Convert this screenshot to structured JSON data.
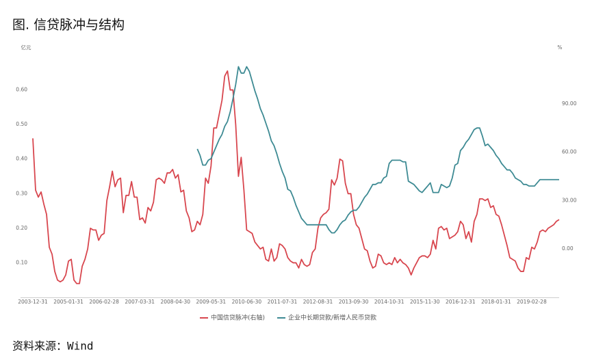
{
  "chart_data": {
    "type": "line",
    "title": "图. 信贷脉冲与结构",
    "source": "资料来源：Wind",
    "y_unit": "亿元",
    "y2_unit": "%",
    "categories": [
      "2003-12-31",
      null,
      null,
      null,
      null,
      null,
      null,
      null,
      null,
      null,
      null,
      null,
      null,
      "2005-01-31",
      null,
      null,
      null,
      null,
      null,
      null,
      null,
      null,
      null,
      null,
      null,
      null,
      "2006-02-28",
      null,
      null,
      null,
      null,
      null,
      null,
      null,
      null,
      null,
      null,
      null,
      null,
      "2007-03-31",
      null,
      null,
      null,
      null,
      null,
      null,
      null,
      null,
      null,
      null,
      null,
      null,
      "2008-04-30",
      null,
      null,
      null,
      null,
      null,
      null,
      null,
      null,
      null,
      null,
      null,
      null,
      "2009-05-31",
      null,
      null,
      null,
      null,
      null,
      null,
      null,
      null,
      null,
      null,
      null,
      null,
      "2010-06-30",
      null,
      null,
      null,
      null,
      null,
      null,
      null,
      null,
      null,
      null,
      null,
      null,
      "2011-07-31",
      null,
      null,
      null,
      null,
      null,
      null,
      null,
      null,
      null,
      null,
      null,
      null,
      "2012-08-31",
      null,
      null,
      null,
      null,
      null,
      null,
      null,
      null,
      null,
      null,
      null,
      null,
      "2013-09-30",
      null,
      null,
      null,
      null,
      null,
      null,
      null,
      null,
      null,
      null,
      null,
      null,
      "2014-10-31",
      null,
      null,
      null,
      null,
      null,
      null,
      null,
      null,
      null,
      null,
      null,
      null,
      "2015-11-30",
      null,
      null,
      null,
      null,
      null,
      null,
      null,
      null,
      null,
      null,
      null,
      null,
      "2016-12-31",
      null,
      null,
      null,
      null,
      null,
      null,
      null,
      null,
      null,
      null,
      null,
      null,
      "2018-01-31",
      null,
      null,
      null,
      null,
      null,
      null,
      null,
      null,
      null,
      null,
      null,
      null,
      "2019-02-28",
      null,
      null,
      null,
      null,
      null,
      null,
      null,
      null,
      null,
      null
    ],
    "series": [
      {
        "name": "中国信贷脉冲(右轴)",
        "color": "#d8464e",
        "axis": "y",
        "values": [
          0.46,
          0.31,
          0.29,
          0.305,
          0.27,
          0.24,
          0.145,
          0.125,
          0.075,
          0.05,
          0.045,
          0.05,
          0.065,
          0.105,
          0.11,
          0.05,
          0.04,
          0.04,
          0.09,
          0.11,
          0.14,
          0.2,
          0.195,
          0.195,
          0.165,
          0.18,
          0.185,
          0.28,
          0.32,
          0.365,
          0.32,
          0.34,
          0.345,
          0.245,
          0.295,
          0.295,
          0.335,
          0.29,
          0.29,
          0.225,
          0.23,
          0.215,
          0.26,
          0.25,
          0.275,
          0.34,
          0.345,
          0.34,
          0.33,
          0.36,
          0.36,
          0.37,
          0.345,
          0.355,
          0.305,
          0.31,
          0.25,
          0.23,
          0.19,
          0.195,
          0.22,
          0.21,
          0.24,
          0.345,
          0.33,
          0.38,
          0.49,
          0.49,
          0.53,
          0.57,
          0.64,
          0.655,
          0.6,
          0.6,
          0.5,
          0.35,
          0.405,
          0.31,
          0.195,
          0.19,
          0.185,
          0.16,
          0.15,
          0.14,
          0.145,
          0.11,
          0.105,
          0.14,
          0.105,
          0.115,
          0.155,
          0.15,
          0.14,
          0.115,
          0.105,
          0.1,
          0.1,
          0.085,
          0.11,
          0.095,
          0.09,
          0.095,
          0.13,
          0.14,
          0.2,
          0.23,
          0.24,
          0.245,
          0.255,
          0.34,
          0.325,
          0.345,
          0.4,
          0.395,
          0.33,
          0.3,
          0.3,
          0.24,
          0.21,
          0.2,
          0.17,
          0.14,
          0.135,
          0.105,
          0.085,
          0.09,
          0.125,
          0.12,
          0.1,
          0.095,
          0.1,
          0.095,
          0.115,
          0.1,
          0.11,
          0.1,
          0.095,
          0.085,
          0.065,
          0.085,
          0.1,
          0.115,
          0.12,
          0.12,
          0.115,
          0.125,
          0.165,
          0.14,
          0.2,
          0.205,
          0.195,
          0.2,
          0.17,
          0.175,
          0.18,
          0.19,
          0.22,
          0.21,
          0.17,
          0.19,
          0.16,
          0.22,
          0.24,
          0.285,
          0.285,
          0.28,
          0.285,
          0.26,
          0.265,
          0.24,
          0.235,
          0.21,
          0.18,
          0.15,
          0.115,
          0.11,
          0.105,
          0.085,
          0.075,
          0.075,
          0.115,
          0.11,
          0.145,
          0.14,
          0.16,
          0.19,
          0.195,
          0.19,
          0.2,
          0.205,
          0.21,
          0.22,
          0.225
        ]
      },
      {
        "name": "企业中长期贷款/新增人民币贷款",
        "color": "#3d8a93",
        "axis": "y2",
        "values": [
          null,
          null,
          null,
          null,
          null,
          null,
          null,
          null,
          null,
          null,
          null,
          null,
          null,
          null,
          null,
          null,
          null,
          null,
          null,
          null,
          null,
          null,
          null,
          null,
          null,
          null,
          null,
          null,
          null,
          null,
          null,
          null,
          null,
          null,
          null,
          null,
          null,
          null,
          null,
          null,
          null,
          null,
          null,
          null,
          null,
          null,
          null,
          null,
          null,
          null,
          null,
          null,
          null,
          null,
          null,
          null,
          null,
          null,
          null,
          null,
          62,
          58,
          52,
          52,
          55,
          56,
          60,
          64,
          68,
          71,
          76,
          79,
          85,
          93,
          102,
          113,
          109,
          109,
          113,
          110,
          104,
          98,
          93,
          87,
          83,
          78,
          73,
          67,
          64,
          59,
          53,
          48,
          44,
          37,
          36,
          32,
          27,
          23,
          19,
          17,
          15,
          15,
          15,
          15,
          15,
          15,
          15,
          15,
          12,
          10,
          10,
          12,
          15,
          17,
          18,
          21,
          23,
          24,
          24,
          26,
          29,
          32,
          34,
          37,
          40,
          40,
          41,
          41,
          44,
          45,
          53,
          55,
          55,
          55,
          55,
          54,
          54,
          42,
          41,
          40,
          38,
          36,
          35,
          37,
          39,
          41,
          35,
          35,
          35,
          40,
          39,
          38,
          39,
          44,
          52,
          53,
          61,
          63,
          66,
          68,
          71,
          74,
          75,
          75,
          70,
          64,
          65,
          63,
          61,
          58,
          56,
          53,
          51,
          49,
          49,
          47,
          44,
          43,
          42,
          40,
          40,
          39,
          39,
          39,
          41,
          43,
          43,
          43,
          43,
          43,
          43,
          43,
          43
        ]
      }
    ],
    "ylim": [
      0,
      0.7
    ],
    "yticks": [
      {
        "value": 0.1,
        "label": "0.10"
      },
      {
        "value": 0.2,
        "label": "0.20"
      },
      {
        "value": 0.3,
        "label": "0.30"
      },
      {
        "value": 0.4,
        "label": "0.40"
      },
      {
        "value": 0.5,
        "label": "0.50"
      },
      {
        "value": 0.6,
        "label": "0.60"
      }
    ],
    "y2lim": [
      -30,
      120
    ],
    "y2ticks": [
      {
        "value": 0,
        "label": "0.00"
      },
      {
        "value": 30,
        "label": "30.00"
      },
      {
        "value": 60,
        "label": "60.00"
      },
      {
        "value": 90,
        "label": "90.00"
      }
    ],
    "grid": false,
    "legend": "bottom"
  }
}
